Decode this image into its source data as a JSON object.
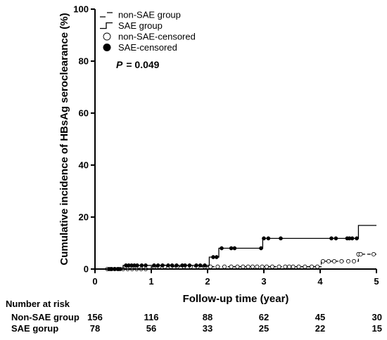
{
  "chart_data": {
    "type": "line",
    "subtype": "kaplan-meier cumulative incidence",
    "title": "",
    "xlabel": "Follow-up time (year)",
    "ylabel": "Cumulative incidence of HBsAg seroclearance (%)",
    "xlim": [
      0,
      5
    ],
    "ylim": [
      0,
      100
    ],
    "x_ticks": [
      "0",
      "1",
      "2",
      "3",
      "4",
      "5"
    ],
    "y_ticks": [
      "0",
      "20",
      "40",
      "60",
      "80",
      "100"
    ],
    "grid": false,
    "legend_position": "top-left",
    "annotation": {
      "p_label": "P",
      "p_value": "= 0.049"
    },
    "legend": [
      {
        "label": "non-SAE group",
        "style": "dashed-step"
      },
      {
        "label": "SAE group",
        "style": "solid-step"
      },
      {
        "label": "non-SAE-censored",
        "style": "open-circle"
      },
      {
        "label": "SAE-censored",
        "style": "filled-circle"
      }
    ],
    "series": [
      {
        "name": "non-SAE group",
        "style": "dashed",
        "color": "#000000",
        "steps": [
          [
            0,
            0
          ],
          [
            1.0,
            0.9
          ],
          [
            4.02,
            3.0
          ],
          [
            4.68,
            5.7
          ],
          [
            5.0,
            6.2
          ]
        ],
        "censored": [
          0.22,
          0.28,
          0.35,
          0.42,
          0.5,
          0.58,
          0.66,
          0.74,
          0.82,
          0.9,
          1.05,
          1.14,
          1.24,
          1.35,
          1.46,
          1.58,
          1.7,
          1.82,
          1.95,
          2.05,
          2.18,
          2.3,
          2.42,
          2.53,
          2.63,
          2.72,
          2.8,
          2.88,
          2.97,
          3.05,
          3.15,
          3.27,
          3.38,
          3.45,
          3.52,
          3.62,
          3.73,
          3.85,
          3.95,
          4.05,
          4.15,
          4.25,
          4.38,
          4.5,
          4.6,
          4.68,
          4.72,
          4.95
        ]
      },
      {
        "name": "SAE group",
        "style": "solid",
        "color": "#000000",
        "steps": [
          [
            0,
            0
          ],
          [
            0.5,
            1.4
          ],
          [
            2.03,
            4.6
          ],
          [
            2.2,
            8.0
          ],
          [
            2.98,
            11.8
          ],
          [
            4.68,
            16.8
          ],
          [
            5.0,
            16.8
          ]
        ],
        "censored": [
          0.25,
          0.3,
          0.35,
          0.4,
          0.45,
          0.55,
          0.6,
          0.65,
          0.7,
          0.75,
          0.83,
          0.9,
          1.05,
          1.12,
          1.2,
          1.3,
          1.37,
          1.45,
          1.55,
          1.6,
          1.68,
          1.8,
          1.87,
          1.95,
          2.1,
          2.16,
          2.25,
          2.42,
          2.48,
          2.95,
          3.0,
          3.08,
          3.3,
          4.2,
          4.28,
          4.48,
          4.52,
          4.57,
          4.65
        ]
      }
    ],
    "risk_table": {
      "header": "Number at risk",
      "times": [
        0,
        1,
        2,
        3,
        4,
        5
      ],
      "rows": [
        {
          "label": "Non-SAE group",
          "values": [
            "156",
            "116",
            "88",
            "62",
            "45",
            "30"
          ]
        },
        {
          "label": "SAE gorup",
          "values": [
            "78",
            "56",
            "33",
            "25",
            "22",
            "15"
          ]
        }
      ]
    }
  }
}
